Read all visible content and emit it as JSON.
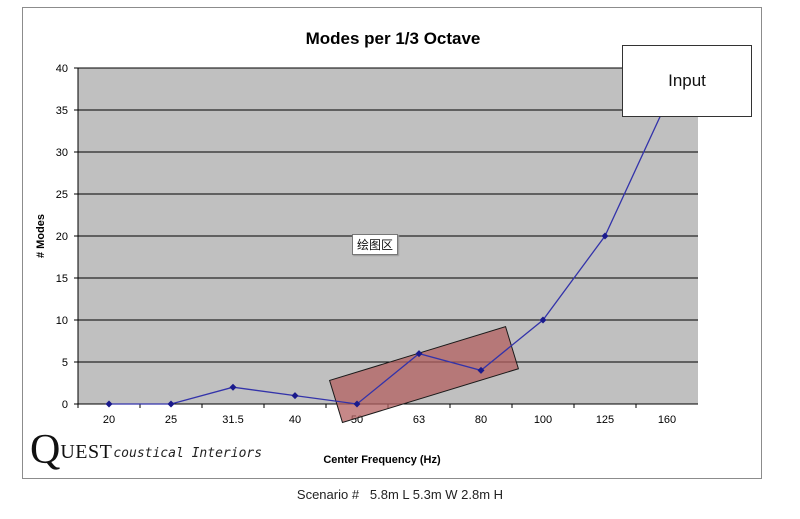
{
  "chart_data": {
    "type": "line",
    "title": "Modes per 1/3 Octave",
    "xlabel": "Center Frequency (Hz)",
    "ylabel": "# Modes",
    "categories": [
      "20",
      "25",
      "31.5",
      "40",
      "50",
      "63",
      "80",
      "100",
      "125",
      "160"
    ],
    "values": [
      0,
      0,
      2,
      1,
      0,
      6,
      4,
      10,
      20,
      36
    ],
    "ylim": [
      0,
      40
    ],
    "yticks": [
      "0",
      "5",
      "10",
      "15",
      "20",
      "25",
      "30",
      "35",
      "40"
    ],
    "grid": true,
    "legend": "none",
    "colors": {
      "plot_bg": "#c0c0c0",
      "line": "#3333aa",
      "marker": "#1a1a8c",
      "highlight_fill": "#b36060",
      "highlight_stroke": "#1a1a1a"
    }
  },
  "annotations": {
    "input_box": "Input",
    "plot_area_tag": "绘图区",
    "highlight_region": [
      "50",
      "63",
      "80"
    ]
  },
  "logo": {
    "big_letter": "Q",
    "small_caps": "UEST",
    "tail": "coustical Interiors"
  },
  "caption": {
    "label": "Scenario #",
    "value": "5.8m L 5.3m W 2.8m H"
  }
}
